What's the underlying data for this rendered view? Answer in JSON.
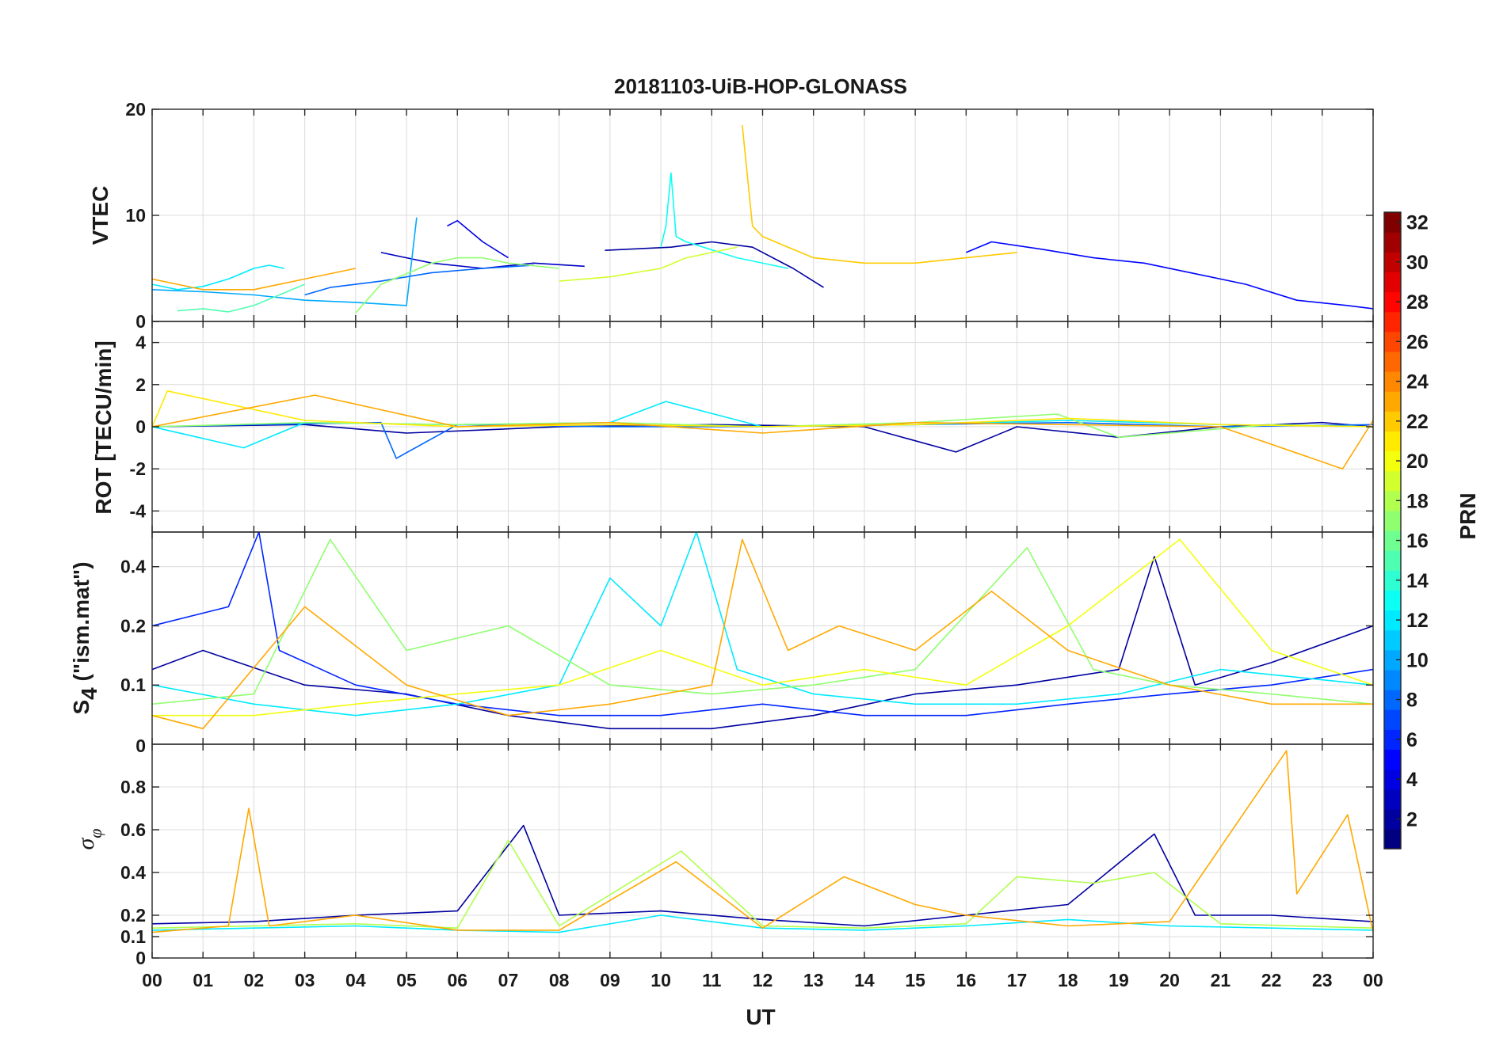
{
  "figure": {
    "title": "20181103-UiB-HOP-GLONASS",
    "xlabel": "UT",
    "x_ticks": [
      "00",
      "01",
      "02",
      "03",
      "04",
      "05",
      "06",
      "07",
      "08",
      "09",
      "10",
      "11",
      "12",
      "13",
      "14",
      "15",
      "16",
      "17",
      "18",
      "19",
      "20",
      "21",
      "22",
      "23",
      "00"
    ]
  },
  "colorbar": {
    "label": "PRN",
    "colormap": "jet",
    "range": [
      1,
      32
    ],
    "ticks": [
      "2",
      "4",
      "6",
      "8",
      "10",
      "12",
      "14",
      "16",
      "18",
      "20",
      "22",
      "24",
      "26",
      "28",
      "30",
      "32"
    ]
  },
  "chart_data": [
    {
      "type": "line",
      "panel": "vtec",
      "ylabel": "VTEC",
      "ylim": [
        0,
        20
      ],
      "y_ticks": [
        "0",
        "10",
        "20"
      ],
      "x_unit": "hours UT",
      "grid": true,
      "series": [
        {
          "prn": 2,
          "x": [
            8.9,
            10.2,
            11.0,
            11.8,
            12.6,
            13.2
          ],
          "y": [
            6.7,
            7.0,
            7.5,
            7.0,
            5.0,
            3.2
          ]
        },
        {
          "prn": 3,
          "x": [
            4.5,
            5.5,
            6.5,
            7.5,
            8.5
          ],
          "y": [
            6.5,
            5.5,
            5.0,
            5.5,
            5.2
          ]
        },
        {
          "prn": 4,
          "x": [
            5.8,
            6.0,
            6.5,
            7.0
          ],
          "y": [
            9.0,
            9.5,
            7.5,
            6.0
          ]
        },
        {
          "prn": 5,
          "x": [
            16.0,
            16.5,
            17.5,
            18.5,
            19.5,
            20.5,
            21.5,
            22.5,
            23.5,
            24.0
          ],
          "y": [
            6.5,
            7.5,
            6.8,
            6.0,
            5.5,
            4.5,
            3.5,
            2.0,
            1.5,
            1.2
          ]
        },
        {
          "prn": 8,
          "x": [
            3.0,
            3.5,
            4.0,
            4.5,
            5.0,
            5.5,
            6.5,
            7.5
          ],
          "y": [
            2.5,
            3.2,
            3.5,
            3.8,
            4.2,
            4.6,
            5.0,
            5.3
          ]
        },
        {
          "prn": 10,
          "x": [
            0.0,
            1.0,
            2.0,
            3.0,
            4.0,
            5.0,
            5.2
          ],
          "y": [
            3.0,
            2.8,
            2.5,
            2.0,
            1.8,
            1.5,
            9.8
          ]
        },
        {
          "prn": 12,
          "x": [
            0.0,
            0.5,
            1.0,
            1.5,
            2.0,
            2.3,
            2.6
          ],
          "y": [
            3.5,
            3.0,
            3.3,
            4.0,
            5.0,
            5.3,
            5.0
          ]
        },
        {
          "prn": 13,
          "x": [
            10.0,
            10.1,
            10.2,
            10.3,
            10.5,
            11.5,
            12.5
          ],
          "y": [
            7.0,
            9.0,
            14.0,
            8.0,
            7.5,
            6.0,
            5.0
          ]
        },
        {
          "prn": 15,
          "x": [
            0.5,
            1.0,
            1.5,
            2.0,
            2.5,
            3.0
          ],
          "y": [
            1.0,
            1.2,
            0.9,
            1.5,
            2.5,
            3.5
          ]
        },
        {
          "prn": 17,
          "x": [
            4.0,
            4.5,
            5.0,
            5.5,
            6.0,
            6.5,
            7.0,
            8.0
          ],
          "y": [
            0.8,
            3.5,
            4.5,
            5.5,
            6.0,
            6.0,
            5.5,
            5.0
          ]
        },
        {
          "prn": 19,
          "x": [
            8.0,
            9.0,
            10.0,
            10.5,
            11.0,
            11.5
          ],
          "y": [
            3.8,
            4.2,
            5.0,
            6.0,
            6.5,
            7.0
          ]
        },
        {
          "prn": 22,
          "x": [
            11.6,
            11.8,
            12.0,
            12.5,
            13.0,
            14.0,
            15.0,
            16.0,
            17.0
          ],
          "y": [
            18.5,
            9.0,
            8.0,
            7.0,
            6.0,
            5.5,
            5.5,
            6.0,
            6.5
          ]
        },
        {
          "prn": 23,
          "x": [
            0.0,
            0.5,
            1.0,
            2.0,
            3.0,
            4.0
          ],
          "y": [
            4.0,
            3.5,
            3.0,
            3.0,
            4.0,
            5.0
          ]
        }
      ]
    },
    {
      "type": "line",
      "panel": "rot",
      "ylabel": "ROT [TECU/min]",
      "ylim": [
        -5,
        5
      ],
      "y_ticks": [
        "-4",
        "-2",
        "0",
        "2",
        "4"
      ],
      "x_unit": "hours UT",
      "grid": true,
      "series": [
        {
          "prn": 2,
          "x": [
            0,
            3,
            5,
            8,
            11,
            14,
            15.8,
            17,
            19,
            21,
            23,
            24
          ],
          "y": [
            0,
            0.1,
            -0.3,
            0,
            0.1,
            0,
            -1.2,
            0,
            -0.5,
            0,
            0.2,
            0
          ]
        },
        {
          "prn": 8,
          "x": [
            0,
            2,
            4.5,
            4.8,
            6,
            9,
            12,
            15,
            18,
            21,
            24
          ],
          "y": [
            0,
            0.1,
            0.2,
            -1.5,
            0.1,
            0,
            0,
            0.1,
            0.2,
            0,
            0.1
          ]
        },
        {
          "prn": 12,
          "x": [
            0,
            1.8,
            3,
            6,
            9,
            10.1,
            12,
            15,
            18,
            21,
            24
          ],
          "y": [
            0,
            -1.0,
            0.2,
            0.1,
            0.2,
            1.2,
            0,
            0.1,
            0.3,
            0.1,
            0
          ]
        },
        {
          "prn": 17,
          "x": [
            0,
            3,
            6,
            9,
            12,
            15,
            17.8,
            19,
            22,
            24
          ],
          "y": [
            0,
            0.2,
            0.1,
            0.2,
            0,
            0.2,
            0.6,
            -0.5,
            0.1,
            0
          ]
        },
        {
          "prn": 21,
          "x": [
            0,
            0.3,
            3,
            6,
            9,
            12,
            15,
            18,
            21,
            24
          ],
          "y": [
            0,
            1.7,
            0.3,
            0,
            0.1,
            0,
            0.1,
            0.4,
            0.1,
            0
          ]
        },
        {
          "prn": 23,
          "x": [
            0,
            3.2,
            6,
            9,
            12,
            15,
            18,
            21,
            23.4,
            24
          ],
          "y": [
            0,
            1.5,
            0,
            0.2,
            -0.3,
            0.2,
            0.1,
            0,
            -2.0,
            0.3
          ]
        }
      ]
    },
    {
      "type": "line",
      "panel": "s4",
      "ylabel": "S4 (\"ism.mat\")",
      "ylabel_main": "S",
      "ylabel_sub": "4",
      "ylabel_rest": " (\"ism.mat\")",
      "ylim": [
        0.05,
        0.6
      ],
      "y_ticks": [
        "0.1",
        "0.2",
        "0.4"
      ],
      "y_scale": "log",
      "x_unit": "hours UT",
      "grid": true,
      "series": [
        {
          "prn": 2,
          "x": [
            0,
            1,
            3,
            5,
            7,
            9,
            11,
            13,
            15,
            17,
            19,
            19.7,
            20.5,
            22,
            24
          ],
          "y": [
            0.12,
            0.15,
            0.1,
            0.09,
            0.07,
            0.06,
            0.06,
            0.07,
            0.09,
            0.1,
            0.12,
            0.45,
            0.1,
            0.13,
            0.2
          ]
        },
        {
          "prn": 6,
          "x": [
            0,
            1.5,
            2.1,
            2.5,
            4,
            6,
            8,
            10,
            12,
            14,
            16,
            18,
            20,
            22,
            24
          ],
          "y": [
            0.2,
            0.25,
            0.6,
            0.15,
            0.1,
            0.08,
            0.07,
            0.07,
            0.08,
            0.07,
            0.07,
            0.08,
            0.09,
            0.1,
            0.12
          ]
        },
        {
          "prn": 12,
          "x": [
            0,
            2,
            4,
            6,
            8,
            9,
            10,
            10.7,
            11.5,
            13,
            15,
            17,
            19,
            21,
            24
          ],
          "y": [
            0.1,
            0.08,
            0.07,
            0.08,
            0.1,
            0.35,
            0.2,
            0.6,
            0.12,
            0.09,
            0.08,
            0.08,
            0.09,
            0.12,
            0.1
          ]
        },
        {
          "prn": 17,
          "x": [
            0,
            2,
            3.5,
            5,
            7,
            9,
            11,
            13,
            15,
            17.2,
            18.5,
            20,
            22,
            24
          ],
          "y": [
            0.08,
            0.09,
            0.55,
            0.15,
            0.2,
            0.1,
            0.09,
            0.1,
            0.12,
            0.5,
            0.12,
            0.1,
            0.09,
            0.08
          ]
        },
        {
          "prn": 20,
          "x": [
            0,
            2,
            4,
            6,
            8,
            10,
            12,
            14,
            16,
            18,
            20.2,
            22,
            24
          ],
          "y": [
            0.07,
            0.07,
            0.08,
            0.09,
            0.1,
            0.15,
            0.1,
            0.12,
            0.1,
            0.2,
            0.55,
            0.15,
            0.1
          ]
        },
        {
          "prn": 23,
          "x": [
            0,
            1,
            3,
            5,
            7,
            9,
            11,
            11.6,
            12.5,
            13.5,
            15,
            16.5,
            18,
            20,
            22,
            24
          ],
          "y": [
            0.07,
            0.06,
            0.25,
            0.1,
            0.07,
            0.08,
            0.1,
            0.55,
            0.15,
            0.2,
            0.15,
            0.3,
            0.15,
            0.1,
            0.08,
            0.08
          ]
        }
      ]
    },
    {
      "type": "line",
      "panel": "sigma_phi",
      "ylabel": "σφ",
      "ylabel_main": "σ",
      "ylabel_sub": "φ",
      "ylim": [
        0,
        1
      ],
      "y_ticks": [
        "0",
        "0.1",
        "0.2",
        "0.4",
        "0.6",
        "0.8"
      ],
      "top_label": "0",
      "x_unit": "hours UT",
      "grid": true,
      "series": [
        {
          "prn": 2,
          "x": [
            0,
            2,
            4,
            6,
            7.3,
            8,
            10,
            12,
            14,
            16,
            18,
            19.7,
            20.5,
            22,
            24
          ],
          "y": [
            0.16,
            0.17,
            0.2,
            0.22,
            0.62,
            0.2,
            0.22,
            0.18,
            0.15,
            0.2,
            0.25,
            0.58,
            0.2,
            0.2,
            0.17
          ]
        },
        {
          "prn": 12,
          "x": [
            0,
            2,
            4,
            6,
            8,
            10,
            12,
            14,
            16,
            18,
            20,
            22,
            24
          ],
          "y": [
            0.13,
            0.14,
            0.15,
            0.13,
            0.12,
            0.2,
            0.14,
            0.13,
            0.15,
            0.18,
            0.15,
            0.14,
            0.13
          ]
        },
        {
          "prn": 18,
          "x": [
            0,
            2,
            4,
            6,
            7,
            8,
            10.4,
            12,
            14,
            16,
            17,
            18.5,
            19.7,
            21,
            24
          ],
          "y": [
            0.14,
            0.15,
            0.16,
            0.14,
            0.55,
            0.15,
            0.5,
            0.15,
            0.14,
            0.16,
            0.38,
            0.35,
            0.4,
            0.16,
            0.14
          ]
        },
        {
          "prn": 23,
          "x": [
            0,
            1.5,
            1.9,
            2.3,
            4,
            6,
            8,
            10.3,
            12,
            13.6,
            15,
            16,
            18,
            20,
            22.3,
            22.5,
            23.5,
            24
          ],
          "y": [
            0.12,
            0.15,
            0.7,
            0.15,
            0.2,
            0.13,
            0.13,
            0.45,
            0.14,
            0.38,
            0.25,
            0.2,
            0.15,
            0.17,
            0.97,
            0.3,
            0.67,
            0.12
          ]
        }
      ]
    }
  ]
}
